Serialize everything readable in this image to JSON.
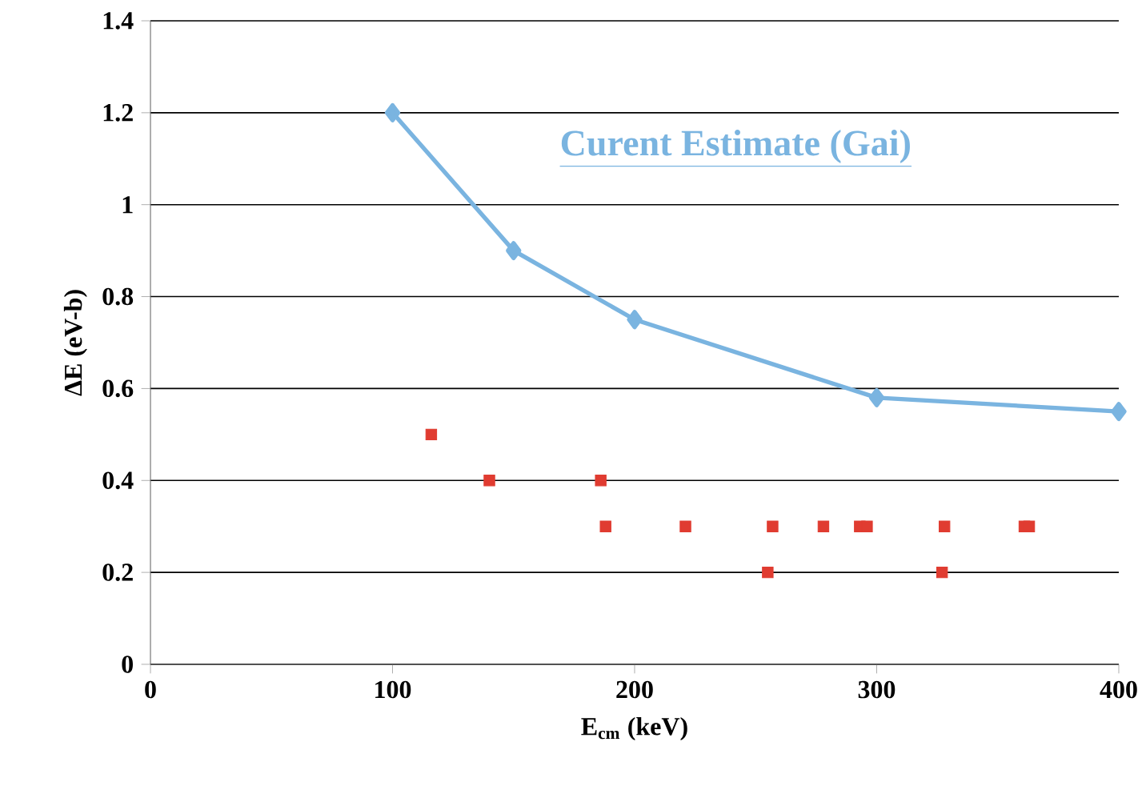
{
  "chart_data": {
    "type": "scatter",
    "xlabel": "E$_{cm}$ (keV)",
    "ylabel": "ΔE (eV-b)",
    "xlim": [
      0,
      400
    ],
    "xticks": [
      0,
      100,
      200,
      300,
      400
    ],
    "ylim": [
      0,
      1.4
    ],
    "yticks": [
      0,
      0.2,
      0.4,
      0.6,
      0.8,
      1,
      1.2,
      1.4
    ],
    "grid": "y",
    "legend": false,
    "series": [
      {
        "name": "Curent Estimate (Gai)",
        "type": "line",
        "color": "#7ab4e0",
        "marker": "diamond",
        "x": [
          100,
          150,
          200,
          300,
          400
        ],
        "values": [
          1.2,
          0.9,
          0.75,
          0.58,
          0.55
        ]
      },
      {
        "color": "#e03c31",
        "marker": "square",
        "x": [
          116,
          140,
          186,
          188,
          221,
          255,
          257,
          278,
          293,
          296,
          327,
          328,
          361,
          363
        ],
        "values": [
          0.5,
          0.4,
          0.4,
          0.3,
          0.3,
          0.2,
          0.3,
          0.3,
          0.3,
          0.3,
          0.2,
          0.3,
          0.3,
          0.3
        ]
      }
    ]
  }
}
